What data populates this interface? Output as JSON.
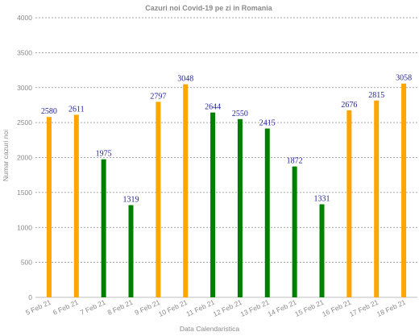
{
  "chart_data": {
    "type": "bar",
    "title": "Cazuri noi Covid-19 pe zi in Romania",
    "xlabel": "Data Calendaristica",
    "ylabel": "Numar cazuri noi",
    "ylim": [
      0,
      4000
    ],
    "yticks": [
      0,
      500,
      1000,
      1500,
      2000,
      2500,
      3000,
      3500,
      4000
    ],
    "grid": true,
    "categories": [
      "5 Feb 21",
      "6 Feb 21",
      "7 Feb 21",
      "8 Feb 21",
      "9 Feb 21",
      "10 Feb 21",
      "11 Feb 21",
      "12 Feb 21",
      "13 Feb 21",
      "14 Feb 21",
      "15 Feb 21",
      "16 Feb 21",
      "17 Feb 21",
      "18 Feb 21"
    ],
    "values": [
      2580,
      2611,
      1975,
      1319,
      2797,
      3048,
      2644,
      2550,
      2415,
      1872,
      1331,
      2676,
      2815,
      3058
    ],
    "bar_colors": [
      "#ffa500",
      "#ffa500",
      "#008000",
      "#008000",
      "#ffa500",
      "#ffa500",
      "#008000",
      "#008000",
      "#008000",
      "#008000",
      "#008000",
      "#ffa500",
      "#ffa500",
      "#ffa500"
    ]
  }
}
